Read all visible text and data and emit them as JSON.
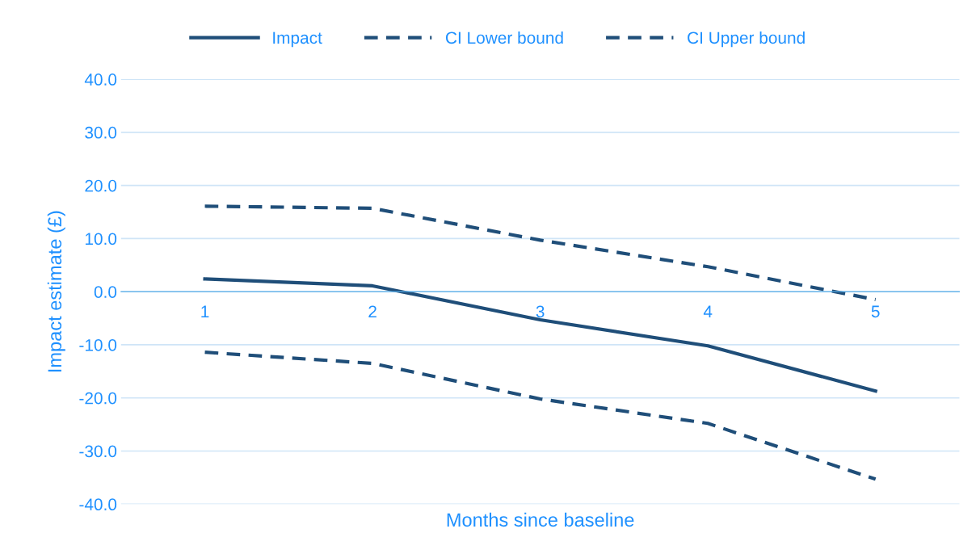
{
  "chart_data": {
    "type": "line",
    "xlabel": "Months since baseline",
    "ylabel": "Impact estimate (£)",
    "categories": [
      "1",
      "2",
      "3",
      "4",
      "5"
    ],
    "series": [
      {
        "name": "Impact",
        "color": "#1f4e79",
        "line_style": "solid",
        "values": [
          2.4,
          1.1,
          -5.3,
          -10.2,
          -18.7
        ]
      },
      {
        "name": "CI Lower bound",
        "color": "#1f4e79",
        "line_style": "dashed",
        "values": [
          -11.4,
          -13.5,
          -20.2,
          -24.8,
          -35.3
        ]
      },
      {
        "name": "CI Upper bound",
        "color": "#1f4e79",
        "line_style": "dashed",
        "values": [
          16.1,
          15.7,
          9.7,
          4.7,
          -1.5
        ]
      }
    ],
    "ylim": [
      -40,
      40
    ],
    "yticks": [
      {
        "value": -40,
        "label": "-40.0"
      },
      {
        "value": -30,
        "label": "-30.0"
      },
      {
        "value": -20,
        "label": "-20.0"
      },
      {
        "value": -10,
        "label": "-10.0"
      },
      {
        "value": 0,
        "label": "0.0"
      },
      {
        "value": 10,
        "label": "10.0"
      },
      {
        "value": 20,
        "label": "20.0"
      },
      {
        "value": 30,
        "label": "30.0"
      },
      {
        "value": 40,
        "label": "40.0"
      }
    ],
    "grid": "y",
    "legend": "top",
    "marker": "none"
  }
}
